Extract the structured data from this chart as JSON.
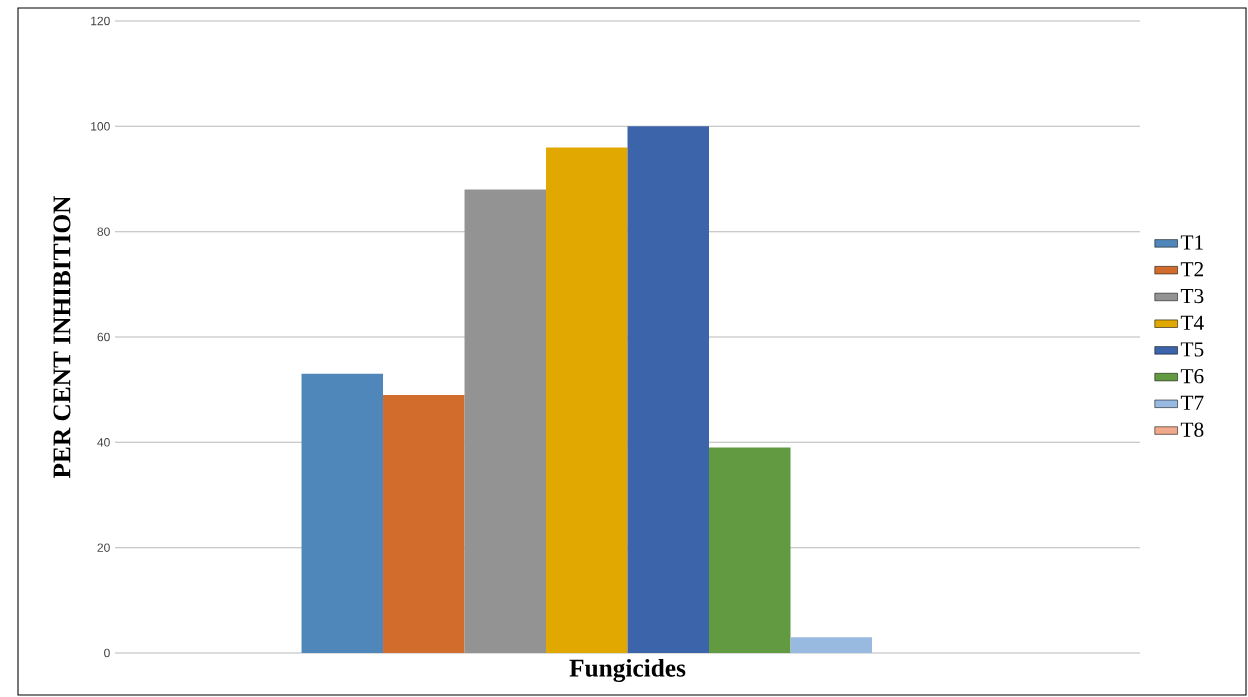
{
  "chart_data": {
    "type": "bar",
    "xlabel": "Fungicides",
    "ylabel": "PER CENT INHIBITION",
    "categories": [
      null
    ],
    "series": [
      {
        "name": "T1",
        "color": "#4f87bb",
        "values": [
          53
        ]
      },
      {
        "name": "T2",
        "color": "#d26c2c",
        "values": [
          49
        ]
      },
      {
        "name": "T3",
        "color": "#939393",
        "values": [
          88
        ]
      },
      {
        "name": "T4",
        "color": "#e0a800",
        "values": [
          96
        ]
      },
      {
        "name": "T5",
        "color": "#3c64ab",
        "values": [
          100
        ]
      },
      {
        "name": "T6",
        "color": "#629a41",
        "values": [
          39
        ]
      },
      {
        "name": "T7",
        "color": "#98b9e0",
        "values": [
          3
        ]
      },
      {
        "name": "T8",
        "color": "#f0a98a",
        "values": [
          0
        ]
      }
    ],
    "ylim": [
      0,
      120
    ],
    "yticks": [
      0,
      20,
      40,
      60,
      80,
      100,
      120
    ],
    "grid": "y",
    "legend": "right"
  }
}
